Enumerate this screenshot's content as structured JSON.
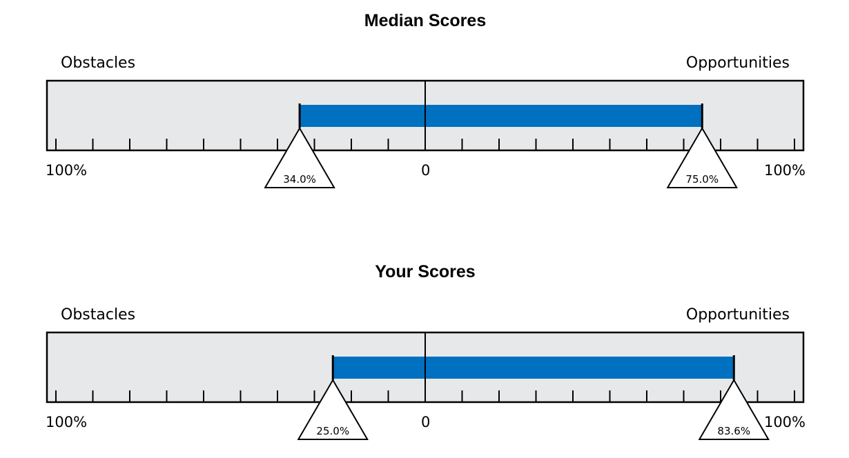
{
  "chart_data": [
    {
      "type": "bar",
      "title": "Median Scores",
      "left_label": "Obstacles",
      "right_label": "Opportunities",
      "axis": {
        "left_end_label": "100%",
        "center_label": "0",
        "right_end_label": "100%",
        "range": [
          -100,
          100
        ]
      },
      "obstacles_value": 34.0,
      "opportunities_value": 75.0,
      "obstacles_marker_label": "34.0%",
      "opportunities_marker_label": "75.0%",
      "bar_color": "#0070c0",
      "track_color": "#e7e8ea"
    },
    {
      "type": "bar",
      "title": "Your Scores",
      "left_label": "Obstacles",
      "right_label": "Opportunities",
      "axis": {
        "left_end_label": "100%",
        "center_label": "0",
        "right_end_label": "100%",
        "range": [
          -100,
          100
        ]
      },
      "obstacles_value": 25.0,
      "opportunities_value": 83.6,
      "obstacles_marker_label": "25.0%",
      "opportunities_marker_label": "83.6%",
      "bar_color": "#0070c0",
      "track_color": "#e7e8ea"
    }
  ]
}
